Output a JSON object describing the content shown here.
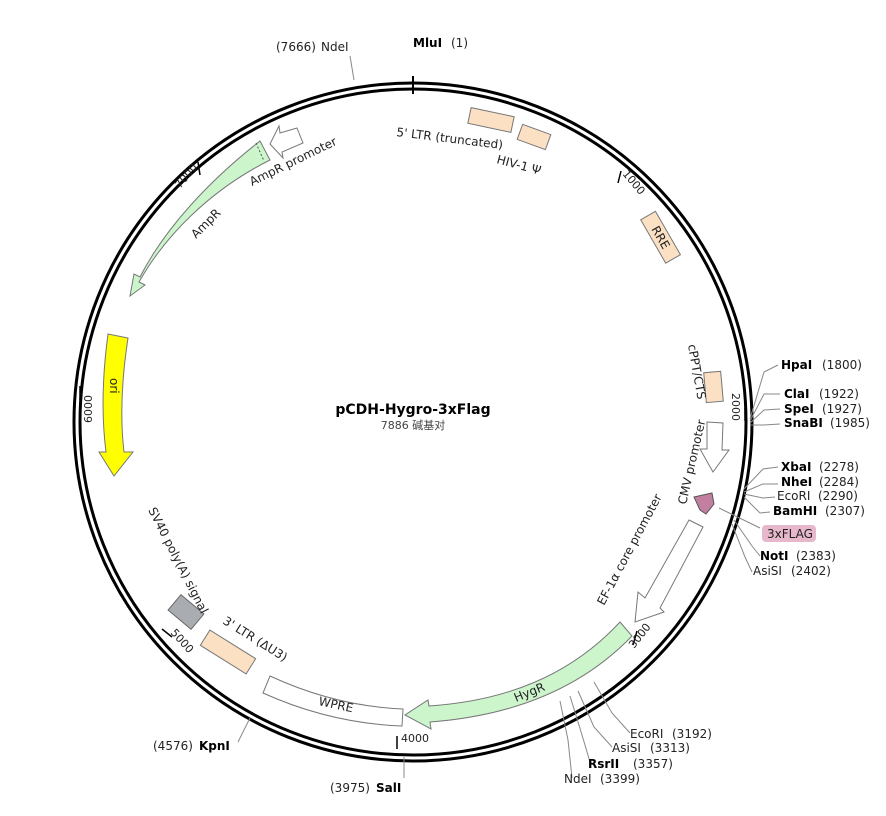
{
  "plasmid": {
    "name": "pCDH-Hygro-3xFlag",
    "length_label": "7886 碱基对",
    "total_bp": 7886
  },
  "ticks": [
    {
      "bp": 1000,
      "label": "1000"
    },
    {
      "bp": 2000,
      "label": "2000"
    },
    {
      "bp": 3000,
      "label": "3000"
    },
    {
      "bp": 4000,
      "label": "4000"
    },
    {
      "bp": 5000,
      "label": "5000"
    },
    {
      "bp": 6000,
      "label": "6000"
    },
    {
      "bp": 7000,
      "label": "7000"
    }
  ],
  "sites": [
    {
      "name": "MluI",
      "pos_label": "(1)",
      "bold": true
    },
    {
      "name": "NdeI",
      "pos_label": "(7666)",
      "bold": false
    },
    {
      "name": "HpaI",
      "pos_label": "(1800)",
      "bold": true
    },
    {
      "name": "ClaI",
      "pos_label": "(1922)",
      "bold": true
    },
    {
      "name": "SpeI",
      "pos_label": "(1927)",
      "bold": true
    },
    {
      "name": "SnaBI",
      "pos_label": "(1985)",
      "bold": true
    },
    {
      "name": "XbaI",
      "pos_label": "(2278)",
      "bold": true
    },
    {
      "name": "NheI",
      "pos_label": "(2284)",
      "bold": true
    },
    {
      "name": "EcoRI",
      "pos_label": "(2290)",
      "bold": false
    },
    {
      "name": "BamHI",
      "pos_label": "(2307)",
      "bold": true
    },
    {
      "name": "NotI",
      "pos_label": "(2383)",
      "bold": true
    },
    {
      "name": "AsiSI",
      "pos_label": "(2402)",
      "bold": false
    },
    {
      "name": "EcoRI",
      "pos_label": "(3192)",
      "bold": false
    },
    {
      "name": "AsiSI",
      "pos_label": "(3313)",
      "bold": false
    },
    {
      "name": "RsrII",
      "pos_label": "(3357)",
      "bold": true
    },
    {
      "name": "NdeI",
      "pos_label": "(3399)",
      "bold": false
    },
    {
      "name": "SalI",
      "pos_label": "(3975)",
      "bold": true
    },
    {
      "name": "KpnI",
      "pos_label": "(4576)",
      "bold": true
    }
  ],
  "features": {
    "ltr5": "5' LTR (truncated)",
    "hiv": "HIV-1 Ψ",
    "rre": "RRE",
    "cppt": "cPPT/CTS",
    "cmv": "CMV promoter",
    "flag": "3xFLAG",
    "ef1a": "EF-1α core promoter",
    "hygr": "HygR",
    "wpre": "WPRE",
    "ltr3": "3' LTR (ΔU3)",
    "sv40": "SV40 poly(A) signal",
    "ori": "ori",
    "ampr": "AmpR",
    "amp_promoter": "AmpR promoter"
  },
  "colors": {
    "ltr": "#fbe0c4",
    "hygr": "#ccf5cc",
    "ori": "#ffff00",
    "sv40": "#a9adb1",
    "flag": "#c37fa0",
    "flag_label_bg": "#e7b7cb"
  }
}
